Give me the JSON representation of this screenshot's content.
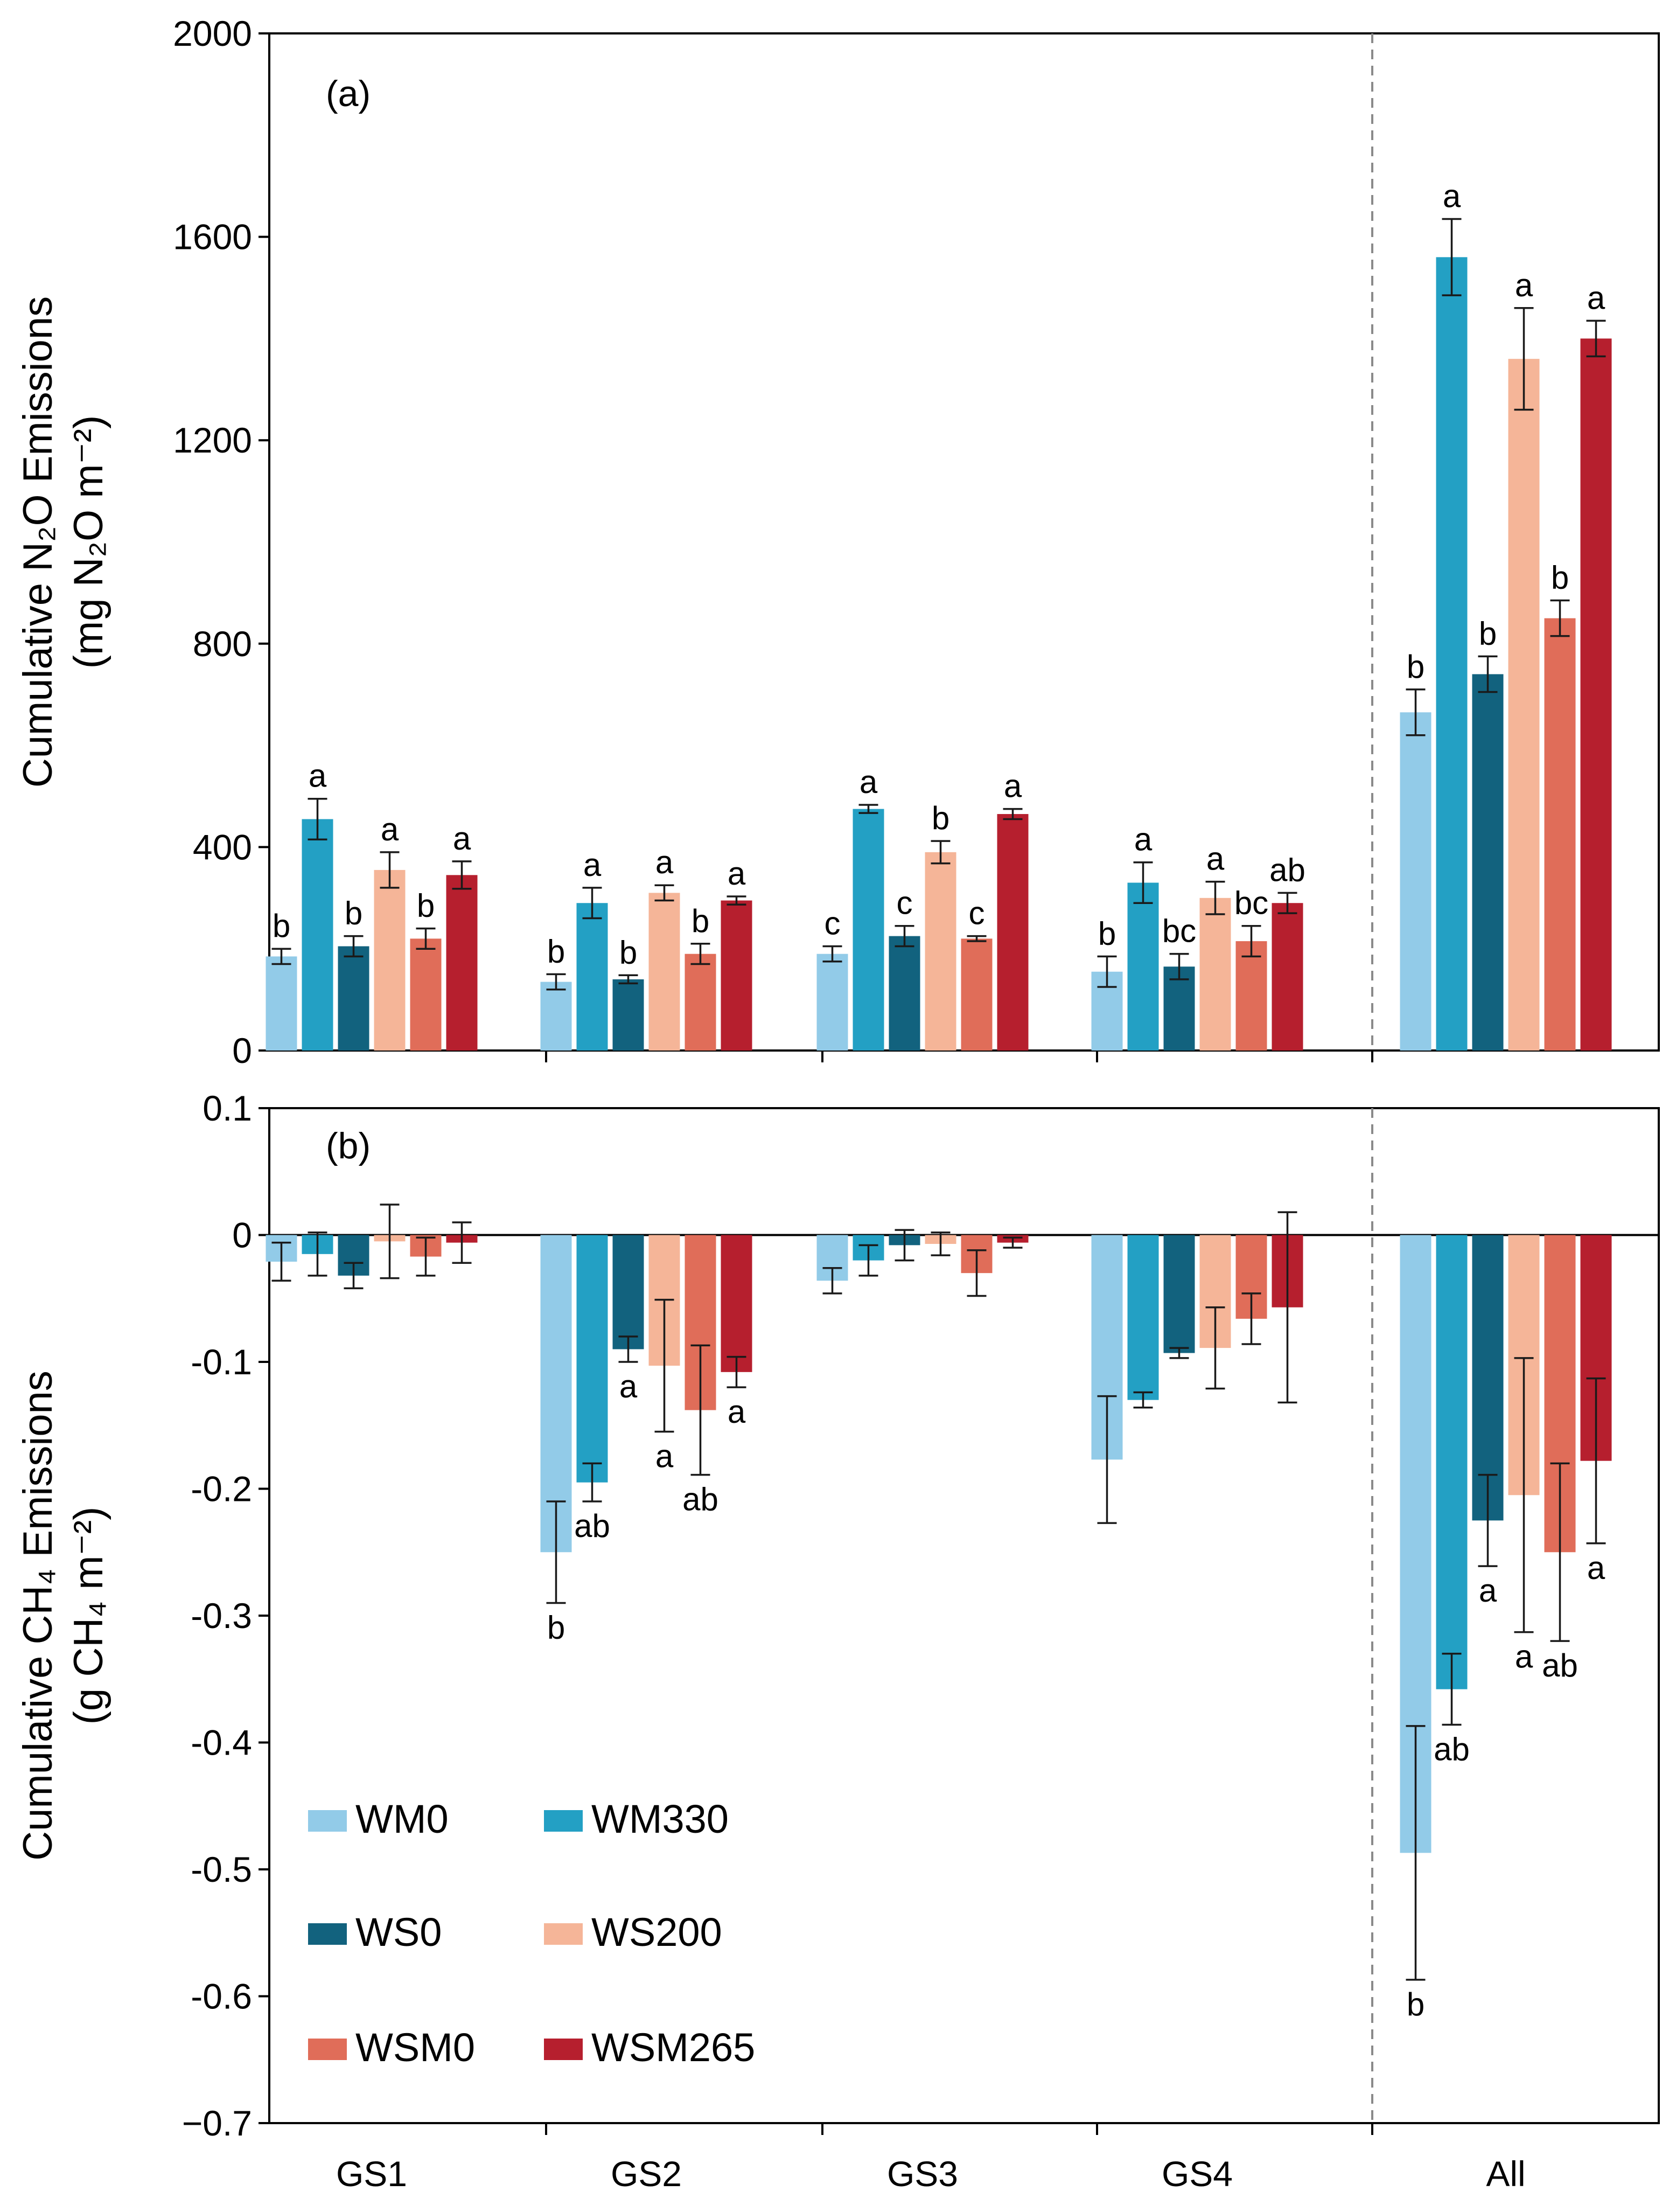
{
  "colors": {
    "WM0": "#92cbe8",
    "WM330": "#23a0c4",
    "WS0": "#12627e",
    "WS200": "#f5b598",
    "WSM0": "#e06d59",
    "WSM265": "#b61f2e",
    "divider": "#8a8a8a"
  },
  "chart_data": [
    {
      "type": "bar",
      "panel_label": "(a)",
      "title": "",
      "ylabel_line1": "Cumulative N₂O Emissions",
      "ylabel_line2": "(mg N₂O m⁻²)",
      "ylim": [
        0,
        2000
      ],
      "yticks": [
        0,
        400,
        800,
        1200,
        1600,
        2000
      ],
      "ytick_labels": [
        "0",
        "400",
        "800",
        "1200",
        "1600",
        "2000"
      ],
      "categories": [
        "GS1",
        "GS2",
        "GS3",
        "GS4",
        "All"
      ],
      "series": [
        {
          "name": "WM0",
          "values": [
            185,
            135,
            190,
            155,
            665
          ],
          "errors": [
            15,
            15,
            15,
            30,
            45
          ],
          "letters": [
            "b",
            "b",
            "c",
            "b",
            "b"
          ]
        },
        {
          "name": "WM330",
          "values": [
            455,
            290,
            475,
            330,
            1560
          ],
          "errors": [
            40,
            30,
            8,
            40,
            75
          ],
          "letters": [
            "a",
            "a",
            "a",
            "a",
            "a"
          ]
        },
        {
          "name": "WS0",
          "values": [
            205,
            140,
            225,
            165,
            740
          ],
          "errors": [
            20,
            8,
            20,
            25,
            35
          ],
          "letters": [
            "b",
            "b",
            "c",
            "bc",
            "b"
          ]
        },
        {
          "name": "WS200",
          "values": [
            355,
            310,
            390,
            300,
            1360
          ],
          "errors": [
            35,
            15,
            22,
            32,
            100
          ],
          "letters": [
            "a",
            "a",
            "b",
            "a",
            "a"
          ]
        },
        {
          "name": "WSM0",
          "values": [
            220,
            190,
            220,
            215,
            850
          ],
          "errors": [
            20,
            20,
            5,
            30,
            35
          ],
          "letters": [
            "b",
            "b",
            "c",
            "bc",
            "b"
          ]
        },
        {
          "name": "WSM265",
          "values": [
            345,
            295,
            465,
            290,
            1400
          ],
          "errors": [
            27,
            8,
            10,
            20,
            35
          ],
          "letters": [
            "a",
            "a",
            "a",
            "ab",
            "a"
          ]
        }
      ]
    },
    {
      "type": "bar",
      "panel_label": "(b)",
      "title": "",
      "ylabel_line1": "Cumulative CH₄ Emissions",
      "ylabel_line2": "(g CH₄ m⁻²)",
      "ylim": [
        -0.7,
        0.1
      ],
      "yticks": [
        0.1,
        0,
        -0.1,
        -0.2,
        -0.3,
        -0.4,
        -0.5,
        -0.6,
        -0.7
      ],
      "ytick_labels": [
        "0.1",
        "0",
        "-0.1",
        "-0.2",
        "-0.3",
        "-0.4",
        "-0.5",
        "-0.6",
        "−0.7"
      ],
      "categories": [
        "GS1",
        "GS2",
        "GS3",
        "GS4",
        "All"
      ],
      "series": [
        {
          "name": "WM0",
          "values": [
            -0.021,
            -0.25,
            -0.036,
            -0.177,
            -0.487
          ],
          "errors": [
            0.015,
            0.04,
            0.01,
            0.05,
            0.1
          ],
          "letters": [
            "",
            "b",
            "",
            "",
            "b"
          ]
        },
        {
          "name": "WM330",
          "values": [
            -0.015,
            -0.195,
            -0.02,
            -0.13,
            -0.358
          ],
          "errors": [
            0.017,
            0.015,
            0.012,
            0.006,
            0.028
          ],
          "letters": [
            "",
            "ab",
            "",
            "",
            "ab"
          ]
        },
        {
          "name": "WS0",
          "values": [
            -0.032,
            -0.09,
            -0.008,
            -0.093,
            -0.225
          ],
          "errors": [
            0.01,
            0.01,
            0.012,
            0.004,
            0.036
          ],
          "letters": [
            "",
            "a",
            "",
            "",
            "a"
          ]
        },
        {
          "name": "WS200",
          "values": [
            -0.005,
            -0.103,
            -0.007,
            -0.089,
            -0.205
          ],
          "errors": [
            0.029,
            0.052,
            0.009,
            0.032,
            0.108
          ],
          "letters": [
            "",
            "a",
            "",
            "",
            "a"
          ]
        },
        {
          "name": "WSM0",
          "values": [
            -0.017,
            -0.138,
            -0.03,
            -0.066,
            -0.25
          ],
          "errors": [
            0.015,
            0.051,
            0.018,
            0.02,
            0.07
          ],
          "letters": [
            "",
            "ab",
            "",
            "",
            "ab"
          ]
        },
        {
          "name": "WSM265",
          "values": [
            -0.006,
            -0.108,
            -0.006,
            -0.057,
            -0.178
          ],
          "errors": [
            0.016,
            0.012,
            0.004,
            0.075,
            0.065
          ],
          "letters": [
            "",
            "a",
            "",
            "",
            "a"
          ]
        }
      ],
      "legend": {
        "position": "lower-left",
        "entries": [
          "WM0",
          "WM330",
          "WS0",
          "WS200",
          "WSM0",
          "WSM265"
        ]
      }
    }
  ]
}
